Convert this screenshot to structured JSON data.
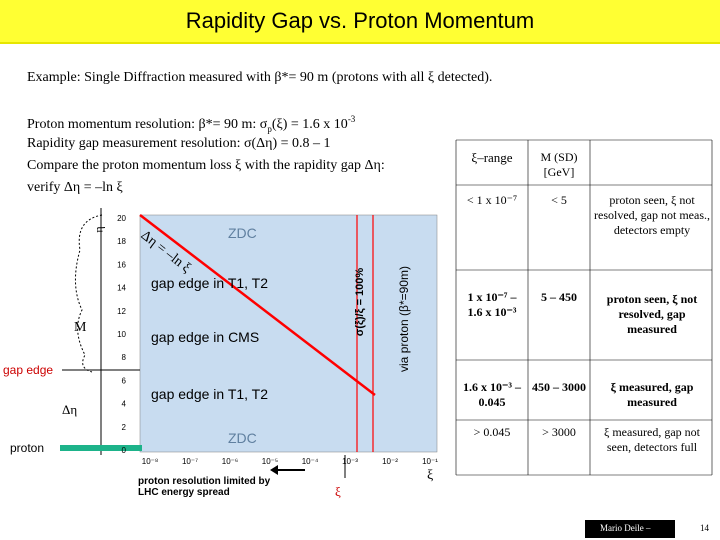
{
  "title": "Rapidity Gap vs. Proton Momentum",
  "example": {
    "prefix": "Example: Single Diffraction",
    "rest": " measured with β*= 90 m (protons with all ξ detected)."
  },
  "lines": {
    "l1_a": "Proton momentum resolution: β*= 90 m: σ",
    "l1_sub": "p",
    "l1_b": "(ξ) = 1.6 x 10",
    "l1_sup": "-3",
    "l2": "Rapidity gap measurement resolution: σ(Δη) = 0.8 – 1",
    "l3": "Compare the proton momentum loss ξ with the rapidity gap Δη:",
    "l4": "verify Δη = –ln ξ"
  },
  "diagram": {
    "eta_label": "η",
    "m_label": "M",
    "gap_edge_label": "gap edge",
    "delta_eta_label": "Δη",
    "proton_label": "proton",
    "formula_label": "Δη = –ln ξ",
    "zdc_top": "ZDC",
    "zdc_bottom": "ZDC",
    "region_t1_upper": "gap edge in T1, T2",
    "region_cms": "gap edge in CMS",
    "region_t1_lower": "gap edge in T1, T2",
    "sigma_label": "σ(ξ)/ξ = 100%",
    "via_proton_label": "via proton (β*=90m)",
    "xi_axis_label": "ξ",
    "xi_arrow_label": "ξ",
    "resolution_note_1": "proton resolution limited by",
    "resolution_note_2": "LHC energy spread",
    "y_ticks": [
      "20",
      "18",
      "16",
      "14",
      "12",
      "10",
      "8",
      "6",
      "4",
      "2",
      "0"
    ],
    "x_ticks": [
      "10⁻⁸",
      "10⁻⁷",
      "10⁻⁶",
      "10⁻⁵",
      "10⁻⁴",
      "10⁻³",
      "10⁻²",
      "10⁻¹"
    ]
  },
  "table": {
    "headers": [
      "ξ–range",
      "M (SD) [GeV]",
      ""
    ],
    "rows": [
      {
        "range": "< 1 x 10⁻⁷",
        "mass": "< 5",
        "status": "proton seen, ξ not resolved, gap not meas., detectors empty",
        "bold": false
      },
      {
        "range": "1 x 10⁻⁷ – 1.6 x 10⁻³",
        "mass": "5 – 450",
        "status": "proton seen, ξ not resolved, gap measured",
        "bold": true
      },
      {
        "range": "1.6 x 10⁻³ – 0.045",
        "mass": "450 – 3000",
        "status": "ξ measured, gap measured",
        "bold": true
      },
      {
        "range": "> 0.045",
        "mass": "> 3000",
        "status": "ξ measured, gap not seen, detectors full",
        "bold": false
      }
    ]
  },
  "footer": {
    "author": "Mario Deile –",
    "page": "14"
  },
  "colors": {
    "title_bg": "#ffff33",
    "plot_bg": "#c8dcf0",
    "diagonal": "#ff0000",
    "vertical_lines": "#ff0000",
    "proton_bar": "#1db38a"
  }
}
